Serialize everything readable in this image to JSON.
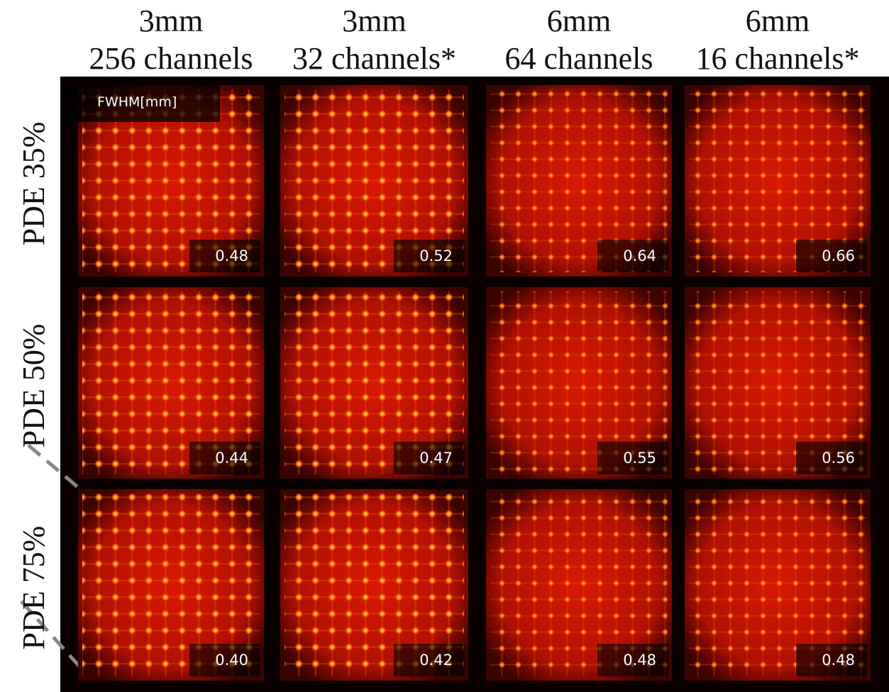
{
  "header": {
    "columns": [
      {
        "line1": "3mm",
        "line2": "256 channels"
      },
      {
        "line1": "3mm",
        "line2": "32 channels*"
      },
      {
        "line1": "6mm",
        "line2": "64 channels"
      },
      {
        "line1": "6mm",
        "line2": "16 channels*"
      }
    ]
  },
  "legend": "FWHM[mm]",
  "rows": [
    {
      "label": "PDE 35%",
      "values": [
        "0.48",
        "0.52",
        "0.64",
        "0.66"
      ]
    },
    {
      "label": "PDE 50%",
      "values": [
        "0.44",
        "0.47",
        "0.55",
        "0.56"
      ]
    },
    {
      "label": "PDE 75%",
      "values": [
        "0.40",
        "0.42",
        "0.48",
        "0.48"
      ]
    }
  ]
}
